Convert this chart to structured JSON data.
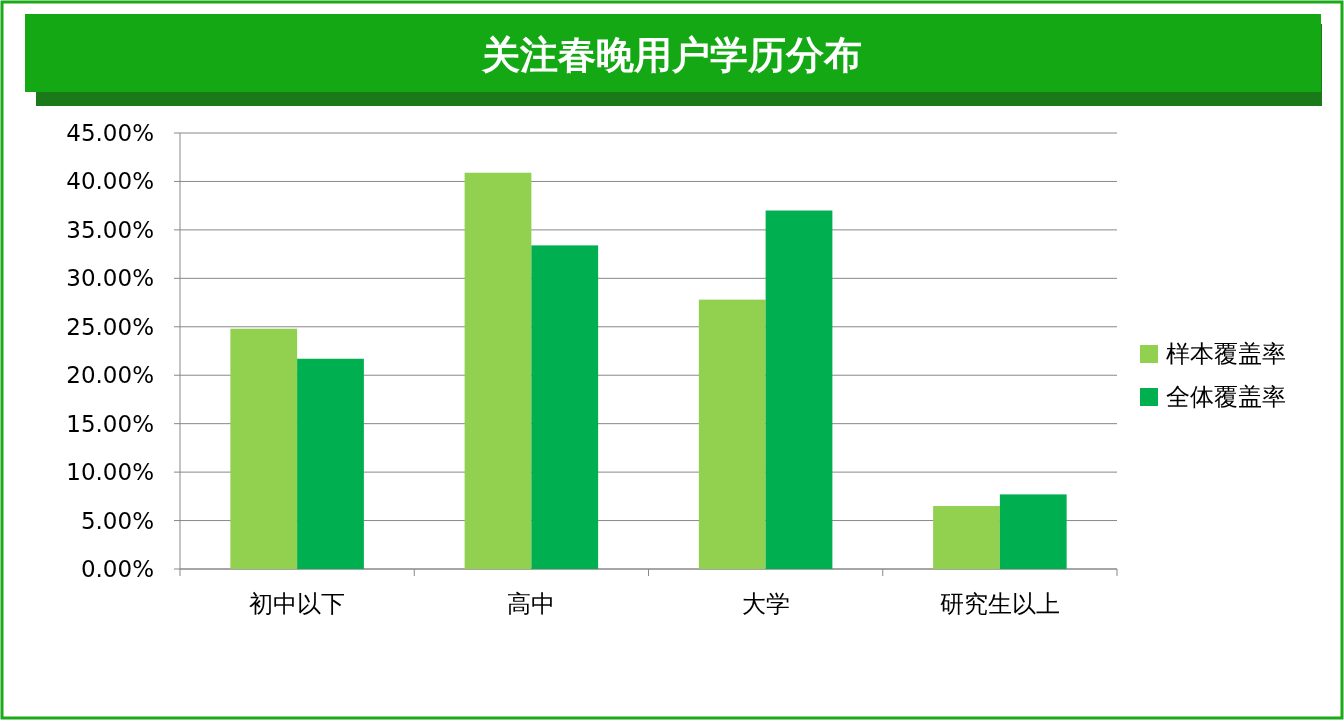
{
  "chart_data": {
    "type": "bar",
    "title": "关注春晚用户学历分布",
    "categories": [
      "初中以下",
      "高中",
      "大学",
      "研究生以上"
    ],
    "series": [
      {
        "name": "样本覆盖率",
        "color": "#92d050",
        "values": [
          24.8,
          40.9,
          27.8,
          6.5
        ]
      },
      {
        "name": "全体覆盖率",
        "color": "#00b050",
        "values": [
          21.7,
          33.4,
          37.0,
          7.7
        ]
      }
    ],
    "ylim": [
      0,
      45
    ],
    "yticks": [
      {
        "value": 0,
        "label": "0.00%"
      },
      {
        "value": 5,
        "label": "5.00%"
      },
      {
        "value": 10,
        "label": "10.00%"
      },
      {
        "value": 15,
        "label": "15.00%"
      },
      {
        "value": 20,
        "label": "20.00%"
      },
      {
        "value": 25,
        "label": "25.00%"
      },
      {
        "value": 30,
        "label": "30.00%"
      },
      {
        "value": 35,
        "label": "35.00%"
      },
      {
        "value": 40,
        "label": "40.00%"
      },
      {
        "value": 45,
        "label": "45.00%"
      }
    ],
    "grid": "y",
    "legend": "right"
  }
}
